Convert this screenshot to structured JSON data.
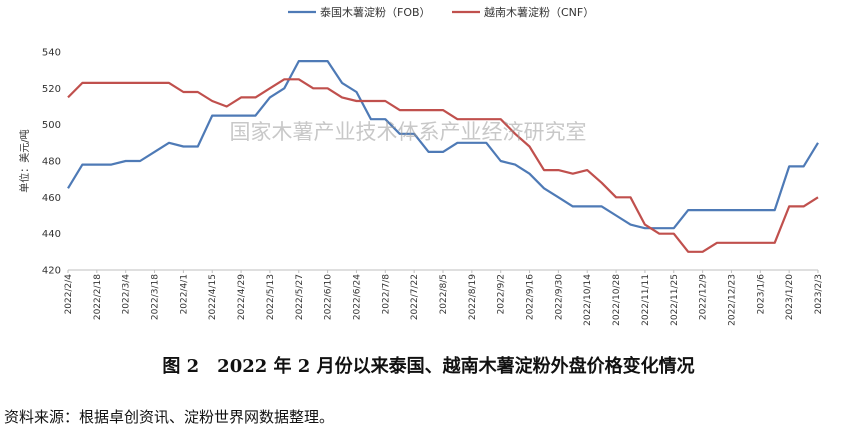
{
  "chart_data": {
    "type": "line",
    "title": "",
    "ylabel": "单位：美元/吨",
    "ylim": [
      420,
      540
    ],
    "yticks": [
      420,
      440,
      460,
      480,
      500,
      520,
      540
    ],
    "x": [
      "2022/2/4",
      "2022/2/11",
      "2022/2/18",
      "2022/2/25",
      "2022/3/4",
      "2022/3/11",
      "2022/3/18",
      "2022/3/25",
      "2022/4/1",
      "2022/4/8",
      "2022/4/15",
      "2022/4/22",
      "2022/4/29",
      "2022/5/6",
      "2022/5/13",
      "2022/5/20",
      "2022/5/27",
      "2022/6/3",
      "2022/6/10",
      "2022/6/17",
      "2022/6/24",
      "2022/7/1",
      "2022/7/8",
      "2022/7/15",
      "2022/7/22",
      "2022/7/29",
      "2022/8/5",
      "2022/8/12",
      "2022/8/19",
      "2022/8/26",
      "2022/9/2",
      "2022/9/9",
      "2022/9/16",
      "2022/9/23",
      "2022/9/30",
      "2022/10/7",
      "2022/10/14",
      "2022/10/21",
      "2022/10/28",
      "2022/11/4",
      "2022/11/11",
      "2022/11/18",
      "2022/11/25",
      "2022/12/2",
      "2022/12/9",
      "2022/12/16",
      "2022/12/23",
      "2022/12/30",
      "2023/1/6",
      "2023/1/13",
      "2023/1/20",
      "2023/1/27",
      "2023/2/3"
    ],
    "x_tick_labels": [
      "2022/2/4",
      "2022/2/18",
      "2022/3/4",
      "2022/3/18",
      "2022/4/1",
      "2022/4/15",
      "2022/4/29",
      "2022/5/13",
      "2022/5/27",
      "2022/6/10",
      "2022/6/24",
      "2022/7/8",
      "2022/7/22",
      "2022/8/5",
      "2022/8/19",
      "2022/9/2",
      "2022/9/16",
      "2022/9/30",
      "2022/10/14",
      "2022/10/28",
      "2022/11/11",
      "2022/11/25",
      "2022/12/9",
      "2022/12/23",
      "2023/1/6",
      "2023/1/20",
      "2023/2/3"
    ],
    "series": [
      {
        "name": "泰国木薯淀粉（FOB）",
        "color": "#4e7ab6",
        "values": [
          465,
          478,
          478,
          478,
          480,
          480,
          485,
          490,
          488,
          488,
          505,
          505,
          505,
          505,
          515,
          520,
          535,
          535,
          535,
          523,
          518,
          503,
          503,
          495,
          495,
          485,
          485,
          490,
          490,
          490,
          480,
          478,
          473,
          465,
          460,
          455,
          455,
          455,
          450,
          445,
          443,
          443,
          443,
          453,
          453,
          453,
          453,
          453,
          453,
          453,
          477,
          477,
          490
        ]
      },
      {
        "name": "越南木薯淀粉（CNF）",
        "color": "#c0504d",
        "values": [
          515,
          523,
          523,
          523,
          523,
          523,
          523,
          523,
          518,
          518,
          513,
          510,
          515,
          515,
          520,
          525,
          525,
          520,
          520,
          515,
          513,
          513,
          513,
          508,
          508,
          508,
          508,
          503,
          503,
          503,
          503,
          495,
          488,
          475,
          475,
          473,
          475,
          468,
          460,
          460,
          445,
          440,
          440,
          430,
          430,
          435,
          435,
          435,
          435,
          435,
          455,
          455,
          460
        ]
      }
    ],
    "legend_position": "top-center",
    "grid": false
  },
  "watermark": "国家木薯产业技术体系产业经济研究室",
  "caption": "图 2　2022 年 2 月份以来泰国、越南木薯淀粉外盘价格变化情况",
  "source": "资料来源：根据卓创资讯、淀粉世界网数据整理。"
}
